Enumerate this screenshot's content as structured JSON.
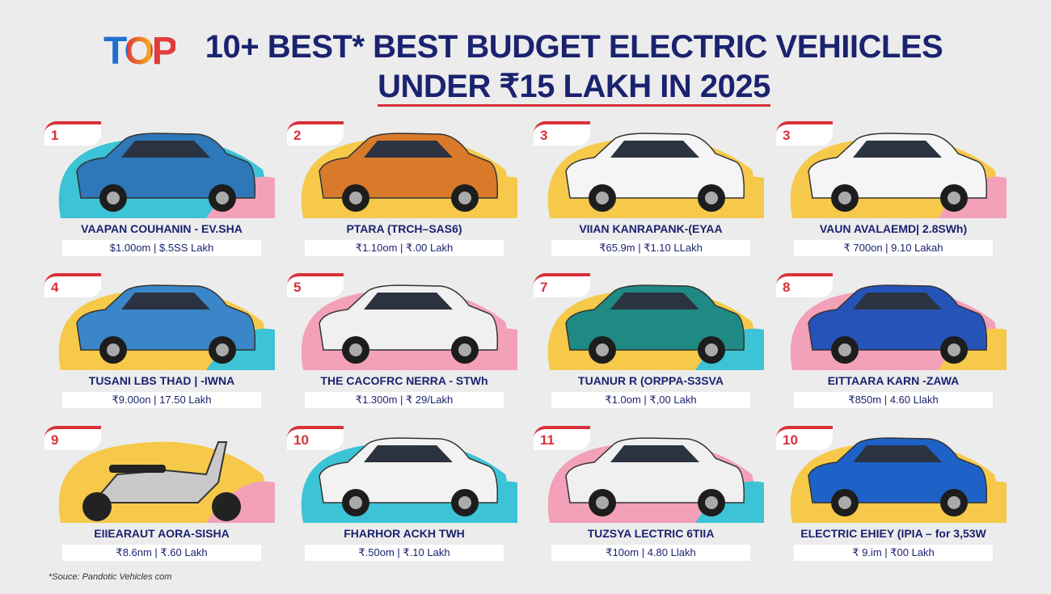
{
  "logo": "TOP",
  "header": {
    "title_line1": "10+ BEST* BEST BUDGET ELECTRIC VEHIICLES",
    "title_line2": "UNDER ₹15 LAKH IN 2025"
  },
  "cards": [
    {
      "rank": "1",
      "name": "VAAPAN COUHANIN - EV.SHA",
      "price": "$1.00om | $.5SS Lakh"
    },
    {
      "rank": "2",
      "name": "PTARA (TRCH–SAS6)",
      "price": "₹1.10om | ₹.00 Lakh"
    },
    {
      "rank": "3",
      "name": "VIIAN KANRAPANK-(EYAA",
      "price": "₹65.9m | ₹1.10 LLakh"
    },
    {
      "rank": "3",
      "name": "VAUN AVALAEMD| 2.8SWh)",
      "price": "₹ 700on | 9.10 Lakah"
    },
    {
      "rank": "4",
      "name": "TUSANI LBS THAD | -IWNA",
      "price": "₹9.00on | 17.50 Lakh"
    },
    {
      "rank": "5",
      "name": "THE CACOFRC NERRA - STWh",
      "price": "₹1.300m | ₹ 29/Lakh"
    },
    {
      "rank": "7",
      "name": "TUANUR R (ORPPA-S3SVA",
      "price": "₹1.0om | ₹,00 Lakh"
    },
    {
      "rank": "8",
      "name": "EITTAARA KARN -ZAWA",
      "price": "₹850m | 4.60 Llakh"
    },
    {
      "rank": "9",
      "name": "EIIEARAUT AORA-SISHA",
      "price": "₹8.6nm | ₹.60 Lakh"
    },
    {
      "rank": "10",
      "name": "FHARHOR ACKH TWH",
      "price": "₹.50om | ₹.10 Lakh"
    },
    {
      "rank": "11",
      "name": "TUZSYA LECTRIC 6TIIA",
      "price": "₹10om | 4.80 Llakh"
    },
    {
      "rank": "10",
      "name": "ELECTRIC EHIEY (IPIA – for 3,53W",
      "price": "₹ 9.im | ₹00 Lakh"
    }
  ],
  "footer": {
    "source": "*Souce: Pandotic Vehicles com"
  }
}
